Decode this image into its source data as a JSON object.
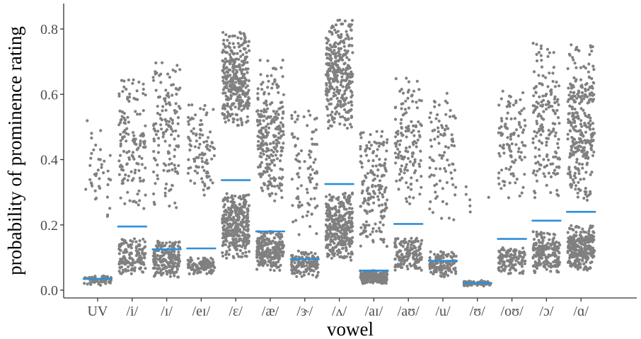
{
  "chart_data": {
    "type": "scatter",
    "title": "",
    "xlabel": "vowel",
    "ylabel": "probability of prominence rating",
    "ylim": [
      -0.02,
      0.87
    ],
    "yticks": [
      0.0,
      0.2,
      0.4,
      0.6,
      0.8
    ],
    "ytick_labels": [
      "0.0",
      "0.2",
      "0.4",
      "0.6",
      "0.8"
    ],
    "grid": false,
    "legend": "none",
    "colors": {
      "points": "#808080",
      "threshold": "#2f8fd8"
    },
    "categories": [
      "UV",
      "/i/",
      "/ɪ/",
      "/eɪ/",
      "/ɛ/",
      "/æ/",
      "/ɝ/",
      "/ʌ/",
      "/aɪ/",
      "/aʊ/",
      "/u/",
      "/ʊ/",
      "/oʊ/",
      "/ɔ/",
      "/ɑ/"
    ],
    "threshold_lines": [
      0.035,
      0.195,
      0.125,
      0.128,
      0.337,
      0.18,
      0.095,
      0.325,
      0.06,
      0.203,
      0.09,
      0.022,
      0.157,
      0.213,
      0.24
    ],
    "series": [
      {
        "name": "",
        "role": "low",
        "values_range": [
          [
            0.015,
            0.045
          ],
          [
            0.05,
            0.16
          ],
          [
            0.04,
            0.15
          ],
          [
            0.05,
            0.1
          ],
          [
            0.09,
            0.3
          ],
          [
            0.06,
            0.18
          ],
          [
            0.04,
            0.12
          ],
          [
            0.09,
            0.3
          ],
          [
            0.02,
            0.06
          ],
          [
            0.06,
            0.16
          ],
          [
            0.04,
            0.12
          ],
          [
            0.012,
            0.03
          ],
          [
            0.05,
            0.13
          ],
          [
            0.05,
            0.18
          ],
          [
            0.06,
            0.2
          ]
        ],
        "counts": [
          60,
          150,
          200,
          120,
          330,
          250,
          130,
          330,
          200,
          150,
          130,
          60,
          130,
          180,
          300
        ]
      },
      {
        "name": "",
        "role": "high",
        "values_range": [
          [
            0.22,
            0.52
          ],
          [
            0.24,
            0.66
          ],
          [
            0.25,
            0.7
          ],
          [
            0.29,
            0.57
          ],
          [
            0.5,
            0.79
          ],
          [
            0.27,
            0.71
          ],
          [
            0.17,
            0.56
          ],
          [
            0.49,
            0.83
          ],
          [
            0.13,
            0.49
          ],
          [
            0.26,
            0.66
          ],
          [
            0.21,
            0.61
          ],
          [
            0.21,
            0.36
          ],
          [
            0.28,
            0.61
          ],
          [
            0.27,
            0.76
          ],
          [
            0.27,
            0.76
          ]
        ],
        "counts": [
          40,
          140,
          140,
          100,
          330,
          260,
          90,
          330,
          170,
          140,
          90,
          6,
          110,
          170,
          300
        ]
      }
    ]
  }
}
